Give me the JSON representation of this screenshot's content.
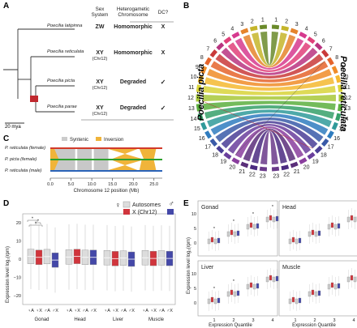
{
  "panel_labels": {
    "a": "A",
    "b": "B",
    "c": "C",
    "d": "D",
    "e": "E"
  },
  "panel_a": {
    "headers": {
      "sex_system": "Sex System",
      "het_chrom": "Heterogametic Chromosome",
      "dc": "DC?"
    },
    "species": [
      {
        "name": "Poecilia latipinna",
        "system": "ZW",
        "system_sub": "",
        "chrom": "Homomorphic",
        "dc": "X"
      },
      {
        "name": "Poecilia reticulata",
        "system": "XY",
        "system_sub": "(Chr12)",
        "chrom": "Homomorphic",
        "dc": "X"
      },
      {
        "name": "Poecilia picta",
        "system": "XY",
        "system_sub": "(Chr12)",
        "chrom": "Degraded",
        "dc": "✓"
      },
      {
        "name": "Poecilia parae",
        "system": "XY",
        "system_sub": "(Chr12)",
        "chrom": "Degraded",
        "dc": "✓"
      }
    ],
    "scale": "20 mya"
  },
  "panel_b": {
    "left_species": "Poecilia picta",
    "right_species": "Poecilia reticulata",
    "chromosome_labels": [
      "1",
      "2",
      "3",
      "4",
      "5",
      "6",
      "7",
      "8",
      "9",
      "10",
      "11",
      "12",
      "13",
      "14",
      "15",
      "16",
      "17",
      "18",
      "19",
      "20",
      "21",
      "22",
      "23"
    ],
    "colors": [
      "#6a8a2a",
      "#c5b52a",
      "#e5842c",
      "#d63a8e",
      "#e0407a",
      "#b83480",
      "#c93a3a",
      "#e5642c",
      "#f08c28",
      "#f5b830",
      "#d8d43a",
      "#a8c83a",
      "#5caf3e",
      "#36a06a",
      "#2f9a9a",
      "#2f7cbf",
      "#3a5aa8",
      "#4a3e96",
      "#6a3e9c",
      "#8a3e9e",
      "#5a2e7a",
      "#4a2a80",
      "#6a3a8a"
    ]
  },
  "panel_c": {
    "legend": {
      "syntenic": "Syntenic",
      "inversion": "Inversion"
    },
    "tracks": [
      "P. reticulata (female)",
      "P. picta (female)",
      "P. reticulata (male)"
    ],
    "xlabel": "Chromosome 12 position (Mb)",
    "ticks": [
      "0.0",
      "5.0",
      "10.0",
      "15.0",
      "20.0",
      "25.0"
    ]
  },
  "panel_d": {
    "ylabel": "Expression level log₂(rpm)",
    "legend": {
      "autosomes": "Autosomes",
      "x": "X (Chr12)",
      "female": "♀",
      "male": "♂"
    },
    "groups": [
      "Gonad",
      "Head",
      "Liver",
      "Muscle"
    ],
    "sub": [
      "♀A",
      "♀X",
      "♂A",
      "♂X"
    ],
    "yticks": [
      "−20",
      "−10",
      "0",
      "10",
      "20"
    ],
    "sig": "*",
    "chart_data": {
      "type": "box",
      "ylim": [
        -25,
        25
      ],
      "categories": [
        "Gonad",
        "Head",
        "Liver",
        "Muscle"
      ],
      "series": [
        {
          "name": "♀ Autosomes",
          "medians": [
            1.5,
            1.2,
            0.8,
            0.8
          ]
        },
        {
          "name": "♀ X (Chr12)",
          "medians": [
            1.0,
            1.5,
            0.3,
            0.4
          ]
        },
        {
          "name": "♂ Autosomes",
          "medians": [
            1.4,
            1.0,
            0.6,
            0.7
          ]
        },
        {
          "name": "♂ X (Chr12)",
          "medians": [
            -0.5,
            1.0,
            0.0,
            0.4
          ]
        }
      ]
    }
  },
  "panel_e": {
    "ylabel": "Expression level log₂(rpm)",
    "xlabel": "Expression Quantile",
    "panels": [
      "Gonad",
      "Head",
      "Liver",
      "Muscle"
    ],
    "quantiles": [
      "1",
      "2",
      "3",
      "4"
    ],
    "yticks": [
      "10",
      "5",
      "0"
    ],
    "sig": "*"
  }
}
